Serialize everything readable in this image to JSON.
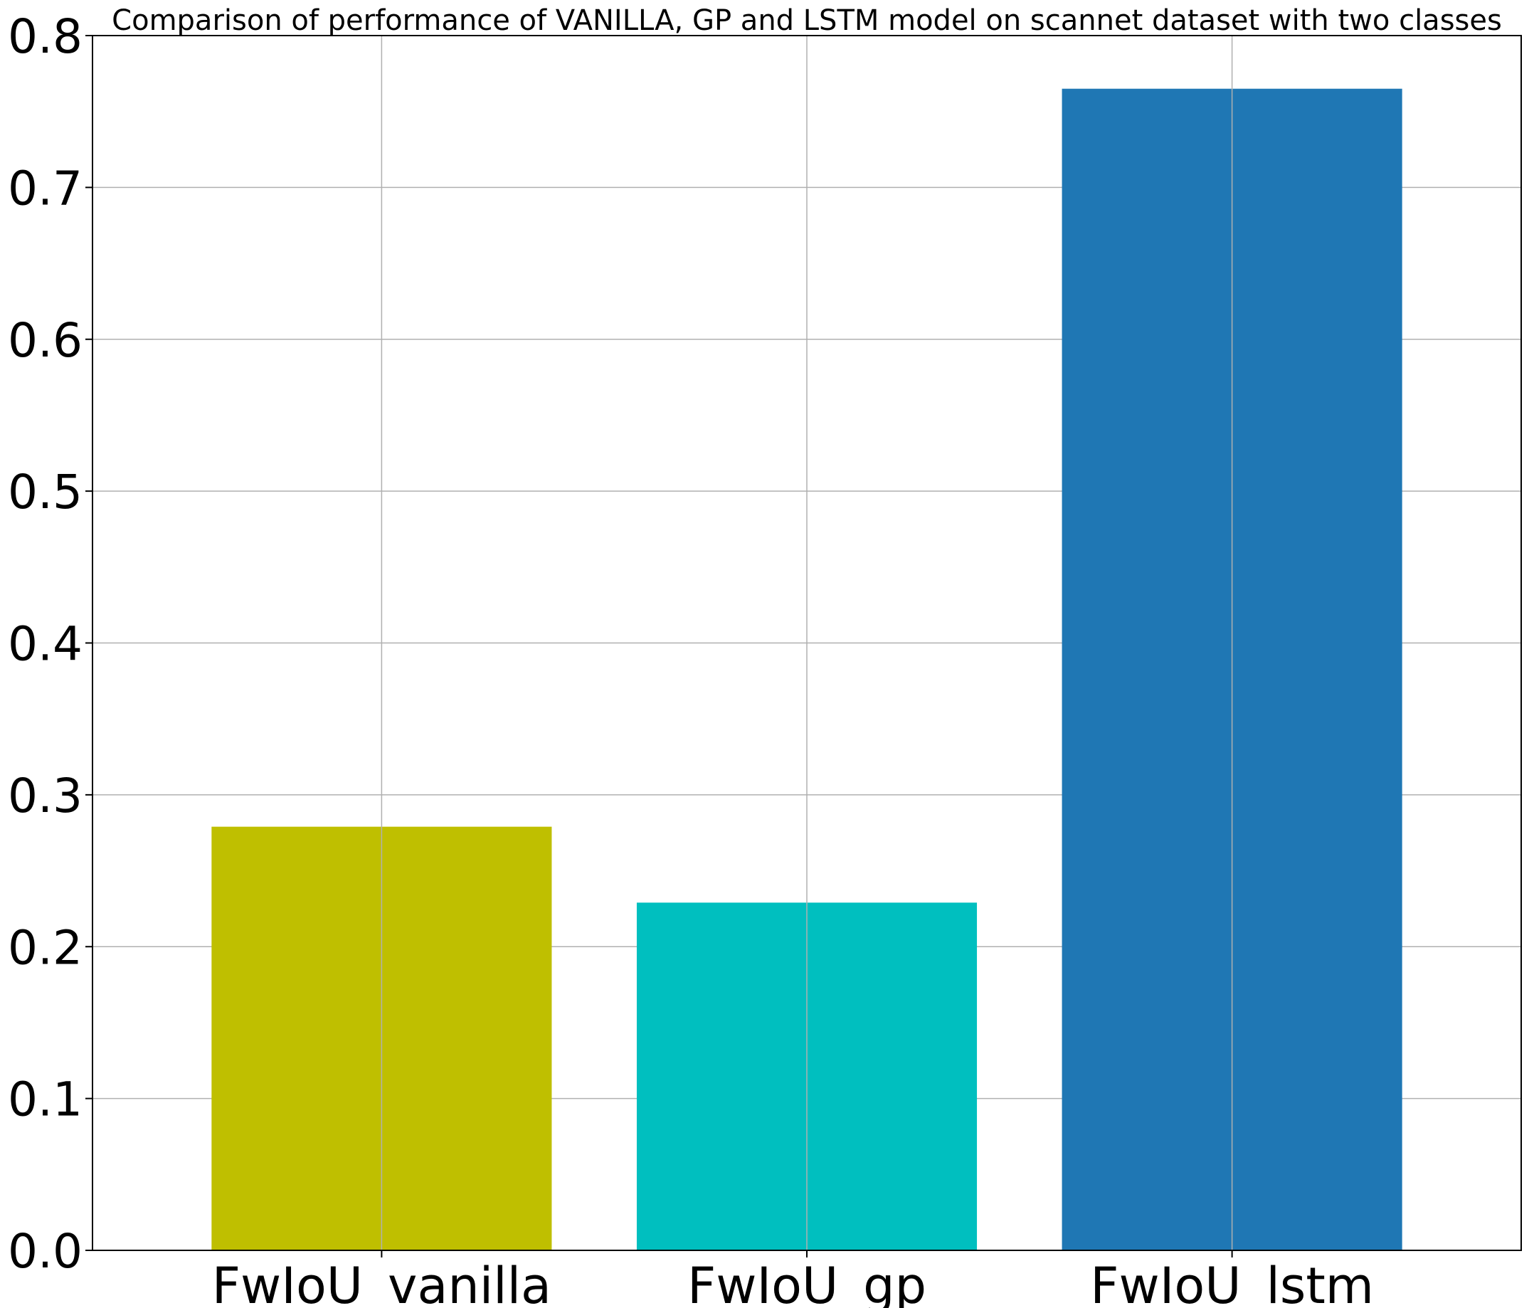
{
  "chart_data": {
    "type": "bar",
    "title": "Comparison of performance of VANILLA, GP and LSTM model on scannet dataset with two classes",
    "xlabel": "",
    "ylabel": "",
    "categories": [
      "FwIoU_vanilla",
      "FwIoU_gp",
      "FwIoU_lstm"
    ],
    "values": [
      0.279,
      0.229,
      0.765
    ],
    "colors": [
      "#bfbf00",
      "#00bfbf",
      "#1f77b4"
    ],
    "ylim": [
      0,
      0.8
    ],
    "yticks": [
      "0.0",
      "0.1",
      "0.2",
      "0.3",
      "0.4",
      "0.5",
      "0.6",
      "0.7",
      "0.8"
    ],
    "grid": true,
    "legend": "none"
  }
}
